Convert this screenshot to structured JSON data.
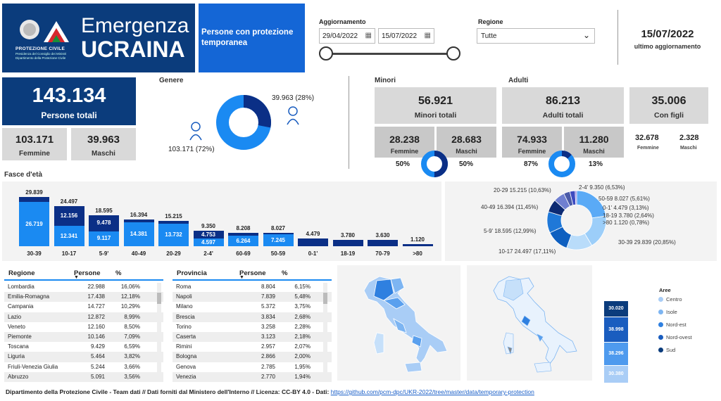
{
  "header": {
    "logo_line1": "PROTEZIONE CIVILE",
    "logo_line2": "Presidenza del Consiglio dei Ministri",
    "logo_line3": "Dipartimento della Protezione Civile",
    "title1": "Emergenza",
    "title2": "UCRAINA",
    "subtitle": "Persone con protezione temporanea"
  },
  "filters": {
    "aggiornamento_label": "Aggiornamento",
    "date_from": "29/04/2022",
    "date_to": "15/07/2022",
    "regione_label": "Regione",
    "regione_value": "Tutte"
  },
  "update": {
    "date": "15/07/2022",
    "label": "ultimo aggiornamento"
  },
  "totals": {
    "persone_value": "143.134",
    "persone_label": "Persone totali",
    "femmine_value": "103.171",
    "femmine_label": "Femmine",
    "maschi_value": "39.963",
    "maschi_label": "Maschi"
  },
  "genere": {
    "title": "Genere",
    "male_label": "39.963 (28%)",
    "female_label": "103.171 (72%)",
    "female_share": 0.72
  },
  "minori": {
    "title": "Minori",
    "total_value": "56.921",
    "total_label": "Minori totali",
    "femmine_value": "28.238",
    "femmine_label": "Femmine",
    "maschi_value": "28.683",
    "maschi_label": "Maschi",
    "pct_f": "50%",
    "pct_m": "50%",
    "share_f": 0.5
  },
  "adulti": {
    "title": "Adulti",
    "total_value": "86.213",
    "total_label": "Adulti totali",
    "femmine_value": "74.933",
    "femmine_label": "Femmine",
    "maschi_value": "11.280",
    "maschi_label": "Maschi",
    "pct_f": "87%",
    "pct_m": "13%",
    "share_f": 0.87
  },
  "figli": {
    "total_value": "35.006",
    "total_label": "Con figli",
    "femmine_value": "32.678",
    "femmine_label": "Femmine",
    "maschi_value": "2.328",
    "maschi_label": "Maschi"
  },
  "fasce": {
    "title": "Fasce d'età"
  },
  "chart_data": [
    {
      "type": "bar",
      "categories": [
        "30-39",
        "10-17",
        "5-9'",
        "40-49",
        "20-29",
        "2-4'",
        "60-69",
        "50-59",
        "0-1'",
        "18-19",
        "70-79",
        ">80"
      ],
      "total_labels": [
        "29.839",
        "24.497",
        "18.595",
        "16.394",
        "15.215",
        "9.350",
        "8.208",
        "8.027",
        "4.479",
        "3.780",
        "3.630",
        "1.120"
      ],
      "totals": [
        29839,
        24497,
        18595,
        16394,
        15215,
        9350,
        8208,
        8027,
        4479,
        3780,
        3630,
        1120
      ],
      "series": [
        {
          "values": [
            26719,
            12341,
            9117,
            14381,
            13732,
            4597,
            6264,
            7245,
            null,
            null,
            null,
            null
          ],
          "labels": [
            "26.719",
            "12.341",
            "9.117",
            "14.381",
            "13.732",
            "4.597",
            "6.264",
            "7.245",
            "",
            "",
            "",
            ""
          ]
        },
        {
          "values": [
            3120,
            12156,
            9478,
            2013,
            1483,
            4753,
            1944,
            782,
            null,
            null,
            null,
            null
          ],
          "labels": [
            "",
            "12.156",
            "9.478",
            "",
            "",
            "4.753",
            "",
            "",
            "",
            "",
            "",
            ""
          ]
        }
      ]
    },
    {
      "type": "pie",
      "labels": [
        "30-39 29.839 (20,85%)",
        "10-17 24.497 (17,11%)",
        "5-9' 18.595 (12,99%)",
        "40-49 16.394 (11,45%)",
        "20-29 15.215 (10,63%)",
        "2-4' 9.350 (6,53%)",
        "50-59 8.027 (5,61%)",
        "0-1' 4.479 (3,13%)",
        "18-19 3.780 (2,64%)",
        ">80 1.120 (0,78%)"
      ],
      "values": [
        29839,
        24497,
        18595,
        16394,
        15215,
        9350,
        8027,
        4479,
        3780,
        1120
      ],
      "colors": [
        "#5aaaf6",
        "#9ccef9",
        "#b9dcfa",
        "#0e5fc0",
        "#1f78d8",
        "#0c2a73",
        "#6f7fd0",
        "#4a5aa8",
        "#3d4bc0",
        "#8d7de0"
      ]
    }
  ],
  "regioni": {
    "col1": "Regione",
    "col2": "Persone",
    "col3": "%",
    "rows": [
      [
        "Lombardia",
        "22.988",
        "16,06%"
      ],
      [
        "Emilia-Romagna",
        "17.438",
        "12,18%"
      ],
      [
        "Campania",
        "14.727",
        "10,29%"
      ],
      [
        "Lazio",
        "12.872",
        "8,99%"
      ],
      [
        "Veneto",
        "12.160",
        "8,50%"
      ],
      [
        "Piemonte",
        "10.146",
        "7,09%"
      ],
      [
        "Toscana",
        "9.429",
        "6,59%"
      ],
      [
        "Liguria",
        "5.464",
        "3,82%"
      ],
      [
        "Friuli-Venezia Giulia",
        "5.244",
        "3,66%"
      ],
      [
        "Abruzzo",
        "5.091",
        "3,56%"
      ]
    ]
  },
  "province": {
    "col1": "Provincia",
    "col2": "Persone",
    "col3": "%",
    "rows": [
      [
        "Roma",
        "8.804",
        "6,15%"
      ],
      [
        "Napoli",
        "7.839",
        "5,48%"
      ],
      [
        "Milano",
        "5.372",
        "3,75%"
      ],
      [
        "Brescia",
        "3.834",
        "2,68%"
      ],
      [
        "Torino",
        "3.258",
        "2,28%"
      ],
      [
        "Caserta",
        "3.123",
        "2,18%"
      ],
      [
        "Rimini",
        "2.957",
        "2,07%"
      ],
      [
        "Bologna",
        "2.866",
        "2,00%"
      ],
      [
        "Genova",
        "2.785",
        "1,95%"
      ],
      [
        "Venezia",
        "2.770",
        "1,94%"
      ]
    ]
  },
  "aree": {
    "title": "Aree",
    "items": [
      {
        "label": "Centro",
        "color": "#a9cdf6"
      },
      {
        "label": "Isole",
        "color": "#7db5f2"
      },
      {
        "label": "Nord-est",
        "color": "#2f80e0"
      },
      {
        "label": "Nord-ovest",
        "color": "#1a5dbf"
      },
      {
        "label": "Sud",
        "color": "#0b3c7c"
      }
    ],
    "stack": [
      "30.020",
      "38.998",
      "38.296",
      "30.380"
    ]
  },
  "footer": {
    "text": "Dipartimento della Protezione Civile - Team dati // Dati forniti dal Ministero dell'Interno // Licenza: CC-BY 4.0 - Dati:",
    "link": "https://github.com/pcm-dpc/UKR-2022/tree/master/data/temporary-protection"
  }
}
